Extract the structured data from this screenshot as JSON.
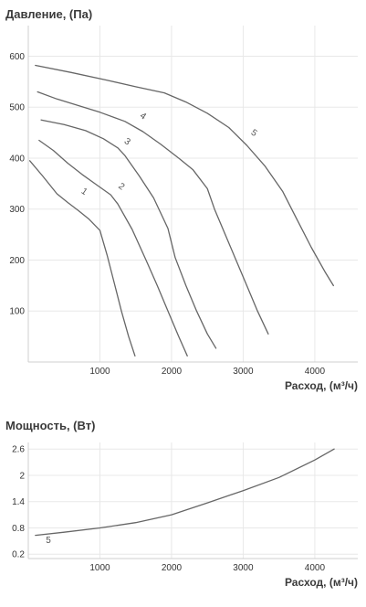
{
  "chart_data": [
    {
      "type": "line",
      "title": "Давление, (Па)",
      "xlabel": "Расход, (м³/ч)",
      "ylabel": "",
      "xlim": [
        0,
        4600
      ],
      "ylim": [
        0,
        660
      ],
      "xticks": [
        1000,
        2000,
        3000,
        4000
      ],
      "yticks": [
        100,
        200,
        300,
        400,
        500,
        600
      ],
      "grid": true,
      "series": [
        {
          "name": "1",
          "x": [
            20,
            200,
            400,
            550,
            700,
            850,
            1000,
            1100,
            1200,
            1300,
            1400,
            1490
          ],
          "y": [
            395,
            365,
            330,
            313,
            297,
            280,
            258,
            210,
            155,
            100,
            50,
            12
          ]
        },
        {
          "name": "2",
          "x": [
            150,
            350,
            550,
            750,
            950,
            1150,
            1250,
            1450,
            1650,
            1800,
            1950,
            2100,
            2220
          ],
          "y": [
            435,
            415,
            390,
            368,
            348,
            328,
            310,
            260,
            198,
            150,
            100,
            50,
            12
          ]
        },
        {
          "name": "3",
          "x": [
            180,
            500,
            800,
            1050,
            1250,
            1350,
            1550,
            1750,
            1950,
            2050,
            2200,
            2350,
            2500,
            2620
          ],
          "y": [
            475,
            466,
            454,
            438,
            420,
            405,
            365,
            322,
            262,
            205,
            150,
            100,
            55,
            27
          ]
        },
        {
          "name": "4",
          "x": [
            130,
            400,
            700,
            1000,
            1350,
            1600,
            1850,
            2100,
            2300,
            2500,
            2600,
            2750,
            2900,
            3050,
            3200,
            3350
          ],
          "y": [
            530,
            516,
            503,
            490,
            472,
            452,
            427,
            400,
            377,
            340,
            300,
            250,
            200,
            150,
            100,
            55
          ]
        },
        {
          "name": "5",
          "x": [
            100,
            600,
            1100,
            1500,
            1900,
            2200,
            2500,
            2800,
            3050,
            3300,
            3550,
            3750,
            3950,
            4150,
            4260
          ],
          "y": [
            582,
            568,
            553,
            540,
            528,
            510,
            488,
            460,
            425,
            385,
            335,
            280,
            225,
            175,
            150
          ]
        }
      ],
      "annotations": [
        {
          "text": "1",
          "x": 760,
          "y": 330
        },
        {
          "text": "2",
          "x": 1280,
          "y": 340
        },
        {
          "text": "3",
          "x": 1360,
          "y": 428
        },
        {
          "text": "4",
          "x": 1580,
          "y": 478
        },
        {
          "text": "5",
          "x": 3130,
          "y": 445
        }
      ]
    },
    {
      "type": "line",
      "title": "Мощность, (Вт)",
      "xlabel": "Расход, (м³/ч)",
      "ylabel": "",
      "xlim": [
        0,
        4600
      ],
      "ylim": [
        0.1,
        2.75
      ],
      "xticks": [
        1000,
        2000,
        3000,
        4000
      ],
      "yticks": [
        0.2,
        0.8,
        1.4,
        2,
        2.6
      ],
      "grid": true,
      "series": [
        {
          "name": "5",
          "x": [
            100,
            500,
            1000,
            1500,
            2000,
            2500,
            3000,
            3500,
            4000,
            4270
          ],
          "y": [
            0.63,
            0.7,
            0.8,
            0.92,
            1.1,
            1.37,
            1.65,
            1.95,
            2.35,
            2.6
          ]
        }
      ],
      "annotations": [
        {
          "text": "5",
          "x": 280,
          "y": 0.45
        }
      ]
    }
  ]
}
